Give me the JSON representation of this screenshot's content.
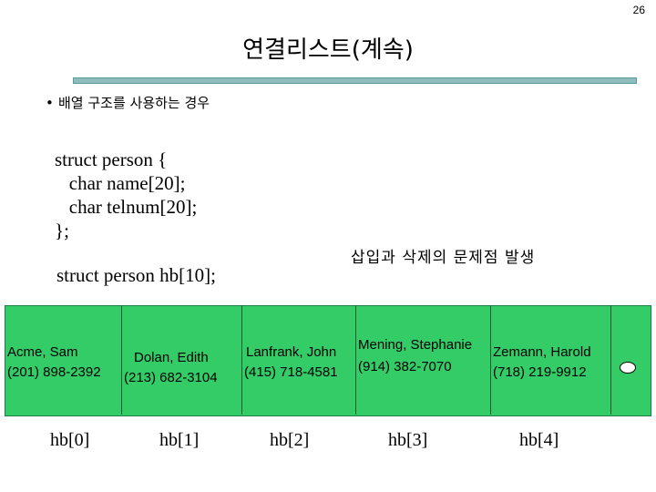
{
  "page_number": "26",
  "title": "연결리스트(계속)",
  "bullet": "배열 구조를 사용하는 경우",
  "code_lines": [
    "struct person {",
    "   char name[20];",
    "   char telnum[20];",
    "};"
  ],
  "code_decl": "struct person hb[10];",
  "problem_note": "삽입과 삭제의 문제점 발생",
  "records": [
    {
      "name": "Acme, Sam",
      "phone": "(201) 898-2392",
      "index": "hb[0]"
    },
    {
      "name": "Dolan, Edith",
      "phone": "(213) 682-3104",
      "index": "hb[1]"
    },
    {
      "name": "Lanfrank, John",
      "phone": "(415) 718-4581",
      "index": "hb[2]"
    },
    {
      "name": "Mening, Stephanie",
      "phone": "(914) 382-7070",
      "index": "hb[3]"
    },
    {
      "name": "Zemann, Harold",
      "phone": "(718) 219-9912",
      "index": "hb[4]"
    }
  ],
  "colors": {
    "array_fill": "#33cc66",
    "title_bar": "#8fbcbc"
  }
}
